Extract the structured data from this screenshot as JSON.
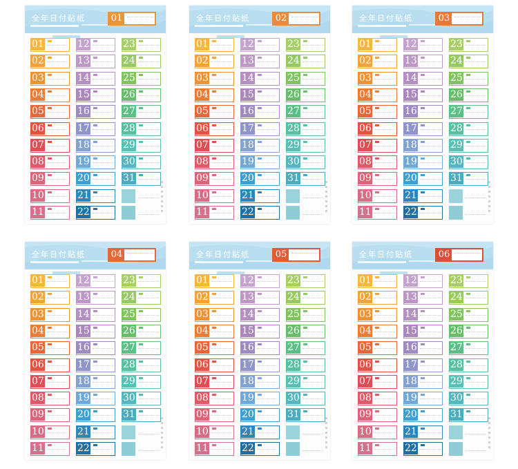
{
  "sheet_title": "全年日付贴纸",
  "sheets": [
    {
      "tag_number": "01",
      "tag_color": "#e9963a"
    },
    {
      "tag_number": "02",
      "tag_color": "#e98a3c"
    },
    {
      "tag_number": "03",
      "tag_color": "#e8793a"
    },
    {
      "tag_number": "04",
      "tag_color": "#e4693a"
    },
    {
      "tag_number": "05",
      "tag_color": "#e35a38"
    },
    {
      "tag_number": "06",
      "tag_color": "#dc4e3a"
    }
  ],
  "day_labels": [
    "01",
    "02",
    "03",
    "04",
    "05",
    "06",
    "07",
    "08",
    "09",
    "10",
    "11",
    "12",
    "13",
    "14",
    "15",
    "16",
    "17",
    "18",
    "19",
    "20",
    "21",
    "22",
    "23",
    "24",
    "25",
    "26",
    "27",
    "28",
    "29",
    "30",
    "31"
  ],
  "colors": {
    "day_01": "#f3b640",
    "day_02": "#f0a33b",
    "day_03": "#ee9236",
    "day_04": "#eb7c35",
    "day_05": "#e8663a",
    "day_06": "#e35344",
    "day_07": "#e04e55",
    "day_08": "#de5a67",
    "day_09": "#db6478",
    "day_10": "#d76d84",
    "day_11": "#d4728d",
    "day_12": "#c4a3ce",
    "day_13": "#bd98c6",
    "day_14": "#b48fc1",
    "day_15": "#aa87bd",
    "day_16": "#9f8bc4",
    "day_17": "#8f95cb",
    "day_18": "#83a2d2",
    "day_19": "#70a9d7",
    "day_20": "#3f9fd0",
    "day_21": "#2e86bc",
    "day_22": "#1f6ea4",
    "day_23": "#a7ce6b",
    "day_24": "#96c962",
    "day_25": "#7fc45f",
    "day_26": "#67be6a",
    "day_27": "#5dbf88",
    "day_28": "#58c0a0",
    "day_29": "#5bbfb4",
    "day_30": "#55b7bd",
    "day_31": "#4eaabd",
    "blank_a": "#88cbd3",
    "blank_b": "#7dc3cf",
    "header_bg": "#b9def0"
  }
}
